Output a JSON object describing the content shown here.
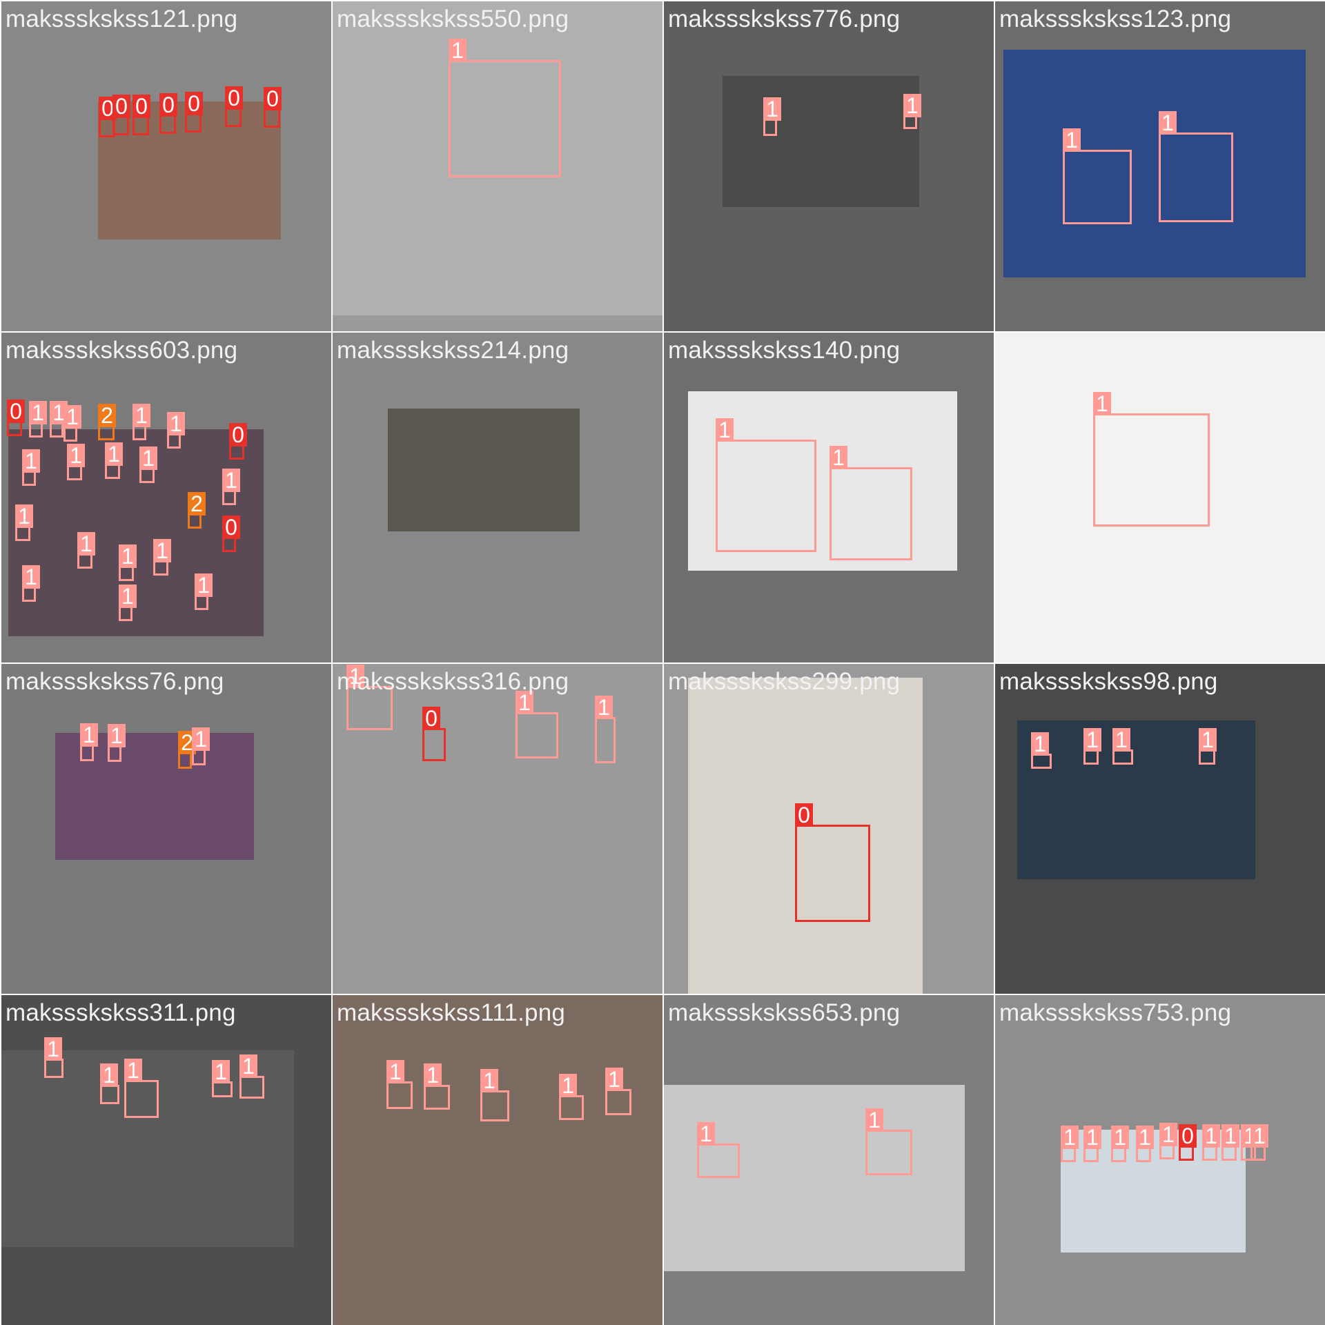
{
  "grid": {
    "tiles": [
      {
        "filename": "makssskskss121.png",
        "bg": "#888888",
        "photo_bg": "#8a6a5a",
        "detections": [
          {
            "label": "0"
          },
          {
            "label": "0"
          },
          {
            "label": "0"
          },
          {
            "label": "0"
          },
          {
            "label": "0"
          },
          {
            "label": "0"
          },
          {
            "label": "0"
          }
        ]
      },
      {
        "filename": "makssskskss550.png",
        "bg": "#9a9a9a",
        "photo_bg": "#b0b0b0",
        "detections": [
          {
            "label": "1"
          }
        ]
      },
      {
        "filename": "makssskskss776.png",
        "bg": "#5f5f5f",
        "photo_bg": "#4a4a4a",
        "detections": [
          {
            "label": "1"
          },
          {
            "label": "1"
          }
        ]
      },
      {
        "filename": "makssskskss123.png",
        "bg": "#6c6c6c",
        "photo_bg": "#2c4a8a",
        "detections": [
          {
            "label": "1"
          },
          {
            "label": "1"
          }
        ]
      },
      {
        "filename": "makssskskss603.png",
        "bg": "#7b7b7b",
        "photo_bg": "#5a4a55",
        "detections": [
          {
            "label": "0"
          },
          {
            "label": "1"
          },
          {
            "label": "1"
          },
          {
            "label": "1"
          },
          {
            "label": "2"
          },
          {
            "label": "1"
          },
          {
            "label": "1"
          },
          {
            "label": "0"
          },
          {
            "label": "1"
          },
          {
            "label": "1"
          },
          {
            "label": "1"
          },
          {
            "label": "1"
          },
          {
            "label": "2"
          },
          {
            "label": "1"
          },
          {
            "label": "0"
          },
          {
            "label": "1"
          },
          {
            "label": "1"
          },
          {
            "label": "1"
          },
          {
            "label": "1"
          },
          {
            "label": "1"
          },
          {
            "label": "1"
          },
          {
            "label": "1"
          }
        ]
      },
      {
        "filename": "makssskskss214.png",
        "bg": "#888888",
        "photo_bg": "#5a5650",
        "detections": []
      },
      {
        "filename": "makssskskss140.png",
        "bg": "#6e6e6e",
        "photo_bg": "#e8e8e8",
        "detections": [
          {
            "label": "1"
          },
          {
            "label": "1"
          }
        ]
      },
      {
        "filename": "makssskskss688.png",
        "bg": "#f4f2f0",
        "photo_bg": "#f4f2f0",
        "detections": [
          {
            "label": "1"
          }
        ]
      },
      {
        "filename": "makssskskss76.png",
        "bg": "#7a7a7a",
        "photo_bg": "#6a4a6a",
        "detections": [
          {
            "label": "1"
          },
          {
            "label": "1"
          },
          {
            "label": "2"
          },
          {
            "label": "1"
          }
        ]
      },
      {
        "filename": "makssskskss316.png",
        "bg": "#8a8a8a",
        "photo_bg": "#9a9a9a",
        "detections": [
          {
            "label": "1"
          },
          {
            "label": "0"
          },
          {
            "label": "1"
          },
          {
            "label": "1"
          }
        ]
      },
      {
        "filename": "makssskskss299.png",
        "bg": "#999999",
        "photo_bg": "#d8d4cc",
        "detections": [
          {
            "label": "0"
          }
        ]
      },
      {
        "filename": "makssskskss98.png",
        "bg": "#4a4a4a",
        "photo_bg": "#2a3a4a",
        "detections": [
          {
            "label": "1"
          },
          {
            "label": "1"
          },
          {
            "label": "1"
          },
          {
            "label": "1"
          }
        ]
      },
      {
        "filename": "makssskskss311.png",
        "bg": "#4e4e4e",
        "photo_bg": "#5a5a5a",
        "detections": [
          {
            "label": "1"
          },
          {
            "label": "1"
          },
          {
            "label": "1"
          },
          {
            "label": "1"
          },
          {
            "label": "1"
          }
        ]
      },
      {
        "filename": "makssskskss111.png",
        "bg": "#6a6a6a",
        "photo_bg": "#7a6a60",
        "detections": [
          {
            "label": "1"
          },
          {
            "label": "1"
          },
          {
            "label": "1"
          },
          {
            "label": "1"
          },
          {
            "label": "1"
          }
        ]
      },
      {
        "filename": "makssskskss653.png",
        "bg": "#7e7e7e",
        "photo_bg": "#c8c8c8",
        "detections": [
          {
            "label": "1"
          },
          {
            "label": "1"
          }
        ]
      },
      {
        "filename": "makssskskss753.png",
        "bg": "#8e8e8e",
        "photo_bg": "#d0d8e0",
        "detections": [
          {
            "label": "1"
          },
          {
            "label": "1"
          },
          {
            "label": "1"
          },
          {
            "label": "1"
          },
          {
            "label": "1"
          },
          {
            "label": "0"
          },
          {
            "label": "1"
          },
          {
            "label": "1"
          },
          {
            "label": "1"
          },
          {
            "label": "1"
          }
        ]
      }
    ]
  }
}
